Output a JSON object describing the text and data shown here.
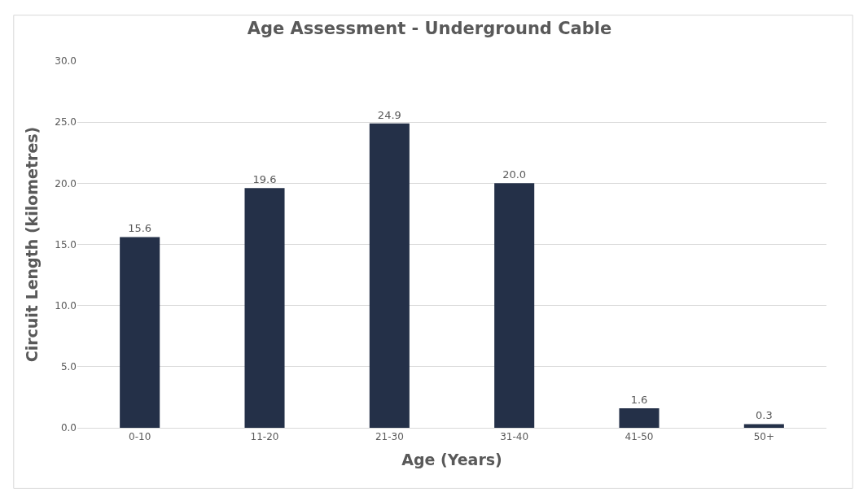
{
  "chart_data": {
    "type": "bar",
    "title": "Age Assessment - Underground Cable",
    "xlabel": "Age (Years)",
    "ylabel": "Circuit Length (kilometres)",
    "categories": [
      "0-10",
      "11-20",
      "21-30",
      "31-40",
      "41-50",
      "50+"
    ],
    "values": [
      15.6,
      19.6,
      24.9,
      20.0,
      1.6,
      0.3
    ],
    "value_labels": [
      "15.6",
      "19.6",
      "24.9",
      "20.0",
      "1.6",
      "0.3"
    ],
    "color": "#243048",
    "ylim": [
      0,
      30
    ],
    "yticks": [
      {
        "value": 0,
        "label": "0.0"
      },
      {
        "value": 5,
        "label": "5.0"
      },
      {
        "value": 10,
        "label": "10.0"
      },
      {
        "value": 15,
        "label": "15.0"
      },
      {
        "value": 20,
        "label": "20.0"
      },
      {
        "value": 25,
        "label": "25.0"
      },
      {
        "value": 30,
        "label": "30.0"
      }
    ],
    "grid": "y"
  }
}
